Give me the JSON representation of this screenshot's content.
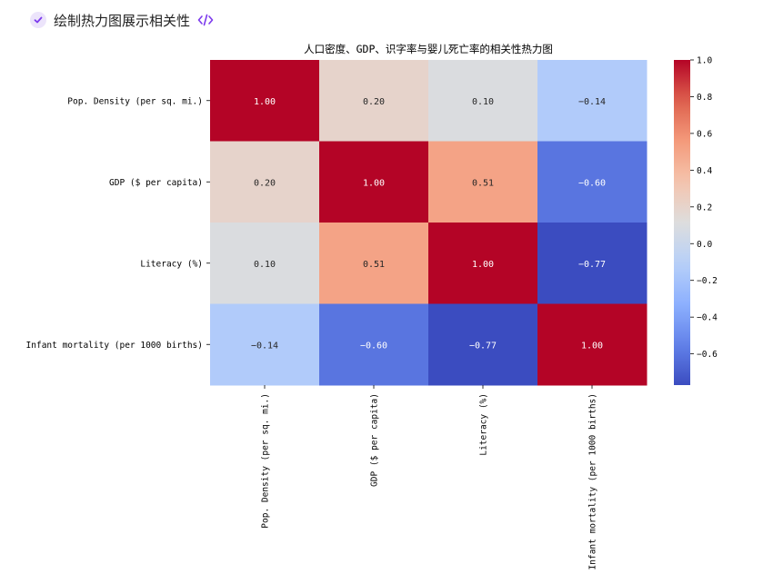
{
  "header": {
    "title": "绘制热力图展示相关性",
    "check_icon": "check-icon",
    "code_icon": "code-icon",
    "accent_color": "#7c3aed",
    "badge_color": "#ece4fb"
  },
  "chart_data": {
    "type": "heatmap",
    "title": "人口密度、GDP、识字率与婴儿死亡率的相关性热力图",
    "xlabel": "",
    "ylabel": "",
    "x_categories": [
      "Pop. Density (per sq. mi.)",
      "GDP ($ per capita)",
      "Literacy (%)",
      "Infant mortality (per 1000 births)"
    ],
    "y_categories": [
      "Pop. Density (per sq. mi.)",
      "GDP ($ per capita)",
      "Literacy (%)",
      "Infant mortality (per 1000 births)"
    ],
    "values": [
      [
        1.0,
        0.2,
        0.1,
        -0.14
      ],
      [
        0.2,
        1.0,
        0.51,
        -0.6
      ],
      [
        0.1,
        0.51,
        1.0,
        -0.77
      ],
      [
        -0.14,
        -0.6,
        -0.77,
        1.0
      ]
    ],
    "cell_labels": [
      [
        "1.00",
        "0.20",
        "0.10",
        "−0.14"
      ],
      [
        "0.20",
        "1.00",
        "0.51",
        "−0.60"
      ],
      [
        "0.10",
        "0.51",
        "1.00",
        "−0.77"
      ],
      [
        "−0.14",
        "−0.60",
        "−0.77",
        "1.00"
      ]
    ],
    "colormap": "coolwarm",
    "colorbar": {
      "range": [
        -0.77,
        1.0
      ],
      "ticks": [
        1.0,
        0.8,
        0.6,
        0.4,
        0.2,
        0.0,
        -0.2,
        -0.4,
        -0.6
      ],
      "tick_labels": [
        "1.0",
        "0.8",
        "0.6",
        "0.4",
        "0.2",
        "0.0",
        "−0.2",
        "−0.4",
        "−0.6"
      ]
    },
    "grid": false,
    "legend": "colorbar-right"
  }
}
